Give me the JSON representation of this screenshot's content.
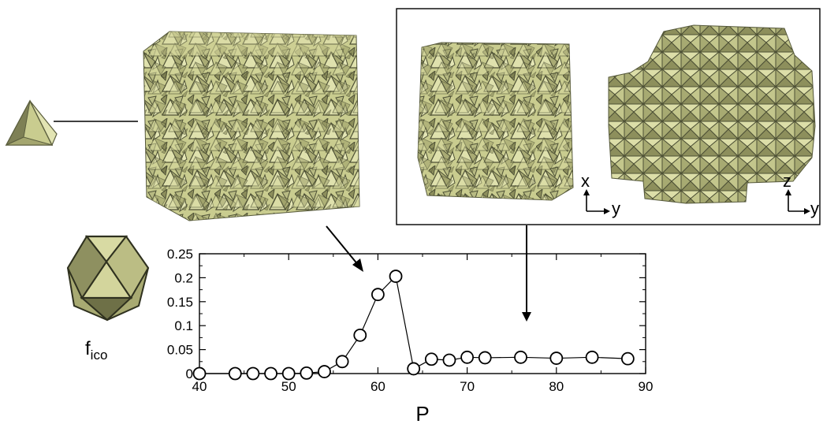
{
  "figure": {
    "tetrahedron_icon": "tetrahedron-shape",
    "icosahedron_icon": "icosahedron-shape",
    "order_parameter_label": "f",
    "order_parameter_subscript": "ico",
    "inset": {
      "left_axes": {
        "vertical": "x",
        "horizontal": "y"
      },
      "right_axes": {
        "vertical": "z",
        "horizontal": "y"
      }
    },
    "colors": {
      "particle_fill": "#c9cc8f",
      "particle_dark": "#4d5035",
      "particle_mid": "#9ea06a",
      "line": "#000000",
      "background": "#ffffff"
    }
  },
  "chart_data": {
    "type": "line",
    "title": "",
    "xlabel": "P",
    "ylabel": "",
    "xlim": [
      40,
      90
    ],
    "ylim": [
      0,
      0.25
    ],
    "xticks": [
      40,
      50,
      60,
      70,
      80,
      90
    ],
    "yticks": [
      0,
      0.05,
      0.1,
      0.15,
      0.2,
      0.25
    ],
    "xtick_labels": [
      "40",
      "50",
      "60",
      "70",
      "80",
      "90"
    ],
    "ytick_labels": [
      "0",
      "0.05",
      "0.1",
      "0.15",
      "0.2",
      "0.25"
    ],
    "marker": "open-circle",
    "grid": false,
    "series": [
      {
        "x": [
          40,
          44,
          46,
          48,
          50,
          52,
          54,
          56,
          58,
          60,
          62,
          64,
          66,
          68,
          70,
          72,
          76,
          80,
          84,
          88
        ],
        "y": [
          0.0,
          0.0,
          0.0,
          0.0,
          0.0,
          0.001,
          0.004,
          0.025,
          0.08,
          0.165,
          0.203,
          0.01,
          0.03,
          0.028,
          0.034,
          0.033,
          0.034,
          0.032,
          0.034,
          0.031
        ]
      }
    ]
  }
}
